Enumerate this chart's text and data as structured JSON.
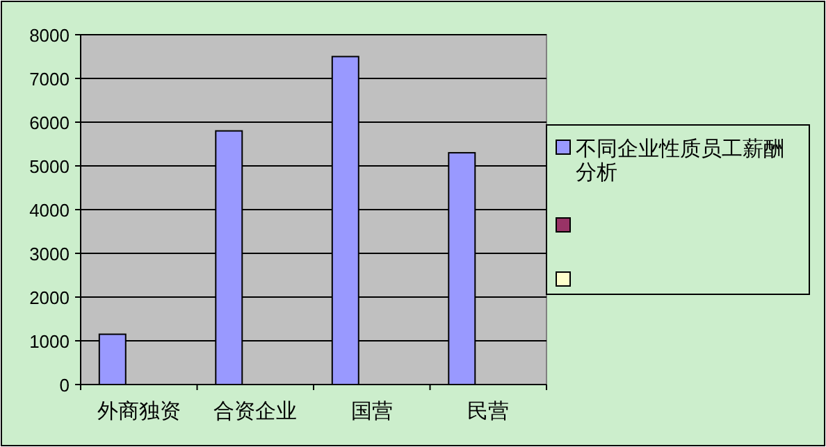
{
  "chart_data": {
    "type": "bar",
    "categories": [
      "外商独资",
      "合资企业",
      "国营",
      "民营"
    ],
    "series": [
      {
        "name": "不同企业性质员工薪酬分析",
        "color": "#9999ff",
        "values": [
          1150,
          5800,
          7500,
          5300
        ]
      },
      {
        "color": "#993366",
        "values": [
          null,
          null,
          null,
          null
        ]
      },
      {
        "color": "#ffffcc",
        "values": [
          null,
          null,
          null,
          null
        ]
      }
    ],
    "ylim": [
      0,
      8000
    ],
    "yticks": [
      0,
      1000,
      2000,
      3000,
      4000,
      5000,
      6000,
      7000,
      8000
    ],
    "grid": "y",
    "legend": "right"
  }
}
